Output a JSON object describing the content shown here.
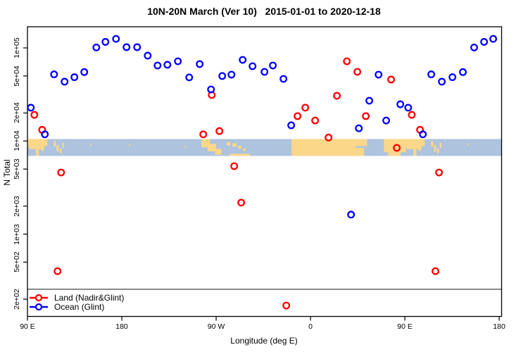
{
  "title": "10N-20N March (Ver 10)   2015-01-01 to 2020-12-18",
  "legend": {
    "items": [
      {
        "label": "Land (Nadir&Glint)",
        "color": "#ff0000"
      },
      {
        "label": "Ocean (Glint)",
        "color": "#0000ff"
      }
    ]
  },
  "colors": {
    "land_series": "#ff0000",
    "ocean_series": "#0000ff",
    "map_ocean": "#adc3de",
    "map_land": "#fbd78a",
    "axis": "#000000",
    "threshold_line": "#444444"
  },
  "chart_data": {
    "type": "scatter",
    "title": "10N-20N March (Ver 10)   2015-01-01 to 2020-12-18",
    "xlabel": "Longitude (deg E)",
    "ylabel": "N Total",
    "x_axis": {
      "note": "axis starts at 90E and runs eastward 450 degrees: 90E -> 180 -> 90W -> 0 -> 90E -> 180; positions below are degrees east of 90E",
      "domain": [
        0,
        452.3
      ],
      "ticks": [
        {
          "pos": 0,
          "label": "90 E"
        },
        {
          "pos": 90,
          "label": "180"
        },
        {
          "pos": 180,
          "label": "90 W"
        },
        {
          "pos": 270,
          "label": "0"
        },
        {
          "pos": 360,
          "label": "90 E"
        },
        {
          "pos": 450,
          "label": "180"
        }
      ]
    },
    "y_axis": {
      "scale": "log10",
      "domain_log10": [
        2.116,
        5.227
      ],
      "ticks": [
        {
          "value": 100000,
          "label": "1e+05"
        },
        {
          "value": 50000,
          "label": "5e+04"
        },
        {
          "value": 20000,
          "label": "2e+04"
        },
        {
          "value": 10000,
          "label": "1e+04"
        },
        {
          "value": 5000,
          "label": "5e+03"
        },
        {
          "value": 2000,
          "label": "2e+03"
        },
        {
          "value": 1000,
          "label": "1e+03"
        },
        {
          "value": 500,
          "label": "5e+02"
        },
        {
          "value": 200,
          "label": "2e+02"
        }
      ]
    },
    "threshold_line": {
      "value": 256
    },
    "map_band": {
      "value_top": 10500,
      "value_bottom": 6920,
      "land_patches": [
        [
          0,
          3,
          0,
          0.5
        ],
        [
          2,
          14,
          0,
          0.6
        ],
        [
          8,
          3,
          0.6,
          0.4
        ],
        [
          15,
          4,
          0,
          0.42
        ],
        [
          13,
          2.5,
          0.35,
          0.35
        ],
        [
          25,
          2,
          0.12,
          0.33
        ],
        [
          27.8,
          2,
          0.35,
          0.4
        ],
        [
          30.8,
          1.8,
          0.55,
          0.3
        ],
        [
          33.3,
          1.6,
          0.22,
          0.3
        ],
        [
          60,
          1,
          0.25,
          0.15
        ],
        [
          97,
          1,
          0.3,
          0.12
        ],
        [
          150,
          0.9,
          0.4,
          0.12
        ],
        [
          166,
          8,
          0,
          0.5
        ],
        [
          172,
          8,
          0.28,
          0.45
        ],
        [
          179,
          6,
          0.58,
          0.35
        ],
        [
          190,
          3.5,
          0.18,
          0.2
        ],
        [
          195.5,
          4,
          0.25,
          0.2
        ],
        [
          201,
          3,
          0.4,
          0.18
        ],
        [
          206,
          2,
          0.55,
          0.18
        ],
        [
          193,
          19,
          0.87,
          0.13
        ],
        [
          252,
          61,
          0,
          1
        ],
        [
          311,
          13,
          0,
          0.42
        ],
        [
          310,
          11,
          0.52,
          0.48
        ],
        [
          350,
          2,
          0.8,
          0.2
        ],
        [
          340,
          21,
          0,
          0.78
        ],
        [
          344,
          12,
          0.78,
          0.22
        ],
        [
          360,
          3,
          0,
          0.5
        ],
        [
          362,
          14,
          0,
          0.6
        ],
        [
          368,
          3,
          0.6,
          0.4
        ],
        [
          375,
          4,
          0,
          0.42
        ],
        [
          373,
          2.5,
          0.35,
          0.35
        ],
        [
          385,
          2,
          0.12,
          0.33
        ],
        [
          387.8,
          2,
          0.35,
          0.4
        ],
        [
          390.8,
          1.8,
          0.55,
          0.3
        ],
        [
          393.3,
          1.6,
          0.22,
          0.3
        ],
        [
          420,
          1,
          0.25,
          0.15
        ]
      ]
    },
    "series": [
      {
        "name": "Land (Nadir&Glint)",
        "color": "#ff0000",
        "points": [
          [
            6.6,
            19100
          ],
          [
            14.0,
            13200
          ],
          [
            28.7,
            400
          ],
          [
            32.1,
            4590
          ],
          [
            167.7,
            11800
          ],
          [
            175.8,
            31200
          ],
          [
            183.1,
            12800
          ],
          [
            197.2,
            5370
          ],
          [
            203.9,
            2180
          ],
          [
            246.9,
            171
          ],
          [
            257.6,
            18500
          ],
          [
            265.0,
            22800
          ],
          [
            274.4,
            16600
          ],
          [
            287.2,
            10900
          ],
          [
            295.2,
            30600
          ],
          [
            304.7,
            71800
          ],
          [
            314.7,
            55300
          ],
          [
            322.8,
            18500
          ],
          [
            346.9,
            45700
          ],
          [
            352.3,
            8450
          ],
          [
            366.6,
            19100
          ],
          [
            374.5,
            13200
          ],
          [
            389.2,
            400
          ],
          [
            392.6,
            4590
          ]
        ]
      },
      {
        "name": "Ocean (Glint)",
        "color": "#0000ff",
        "points": [
          [
            3.2,
            22800
          ],
          [
            16.6,
            11800
          ],
          [
            25.4,
            52000
          ],
          [
            35.4,
            43400
          ],
          [
            44.8,
            48500
          ],
          [
            54.2,
            55000
          ],
          [
            65.7,
            101000
          ],
          [
            74.4,
            116000
          ],
          [
            84.5,
            125000
          ],
          [
            94.5,
            101800
          ],
          [
            104.6,
            101800
          ],
          [
            114.7,
            82600
          ],
          [
            124.1,
            64700
          ],
          [
            133.5,
            65900
          ],
          [
            143.5,
            71800
          ],
          [
            154.3,
            48200
          ],
          [
            164.3,
            67000
          ],
          [
            175.1,
            35800
          ],
          [
            185.8,
            49900
          ],
          [
            194.6,
            51600
          ],
          [
            205.3,
            74400
          ],
          [
            214.7,
            63600
          ],
          [
            226.1,
            55300
          ],
          [
            234.1,
            64700
          ],
          [
            244.2,
            46500
          ],
          [
            251.6,
            14750
          ],
          [
            308.7,
            1620
          ],
          [
            316.1,
            13700
          ],
          [
            326.1,
            27100
          ],
          [
            334.9,
            51600
          ],
          [
            342.2,
            16600
          ],
          [
            355.7,
            24800
          ],
          [
            363.2,
            22800
          ],
          [
            377.2,
            11800
          ],
          [
            385.2,
            52000
          ],
          [
            395.3,
            43400
          ],
          [
            405.4,
            48500
          ],
          [
            415.4,
            55000
          ],
          [
            426.1,
            101000
          ],
          [
            435.6,
            116000
          ],
          [
            444.3,
            125000
          ]
        ]
      }
    ]
  }
}
